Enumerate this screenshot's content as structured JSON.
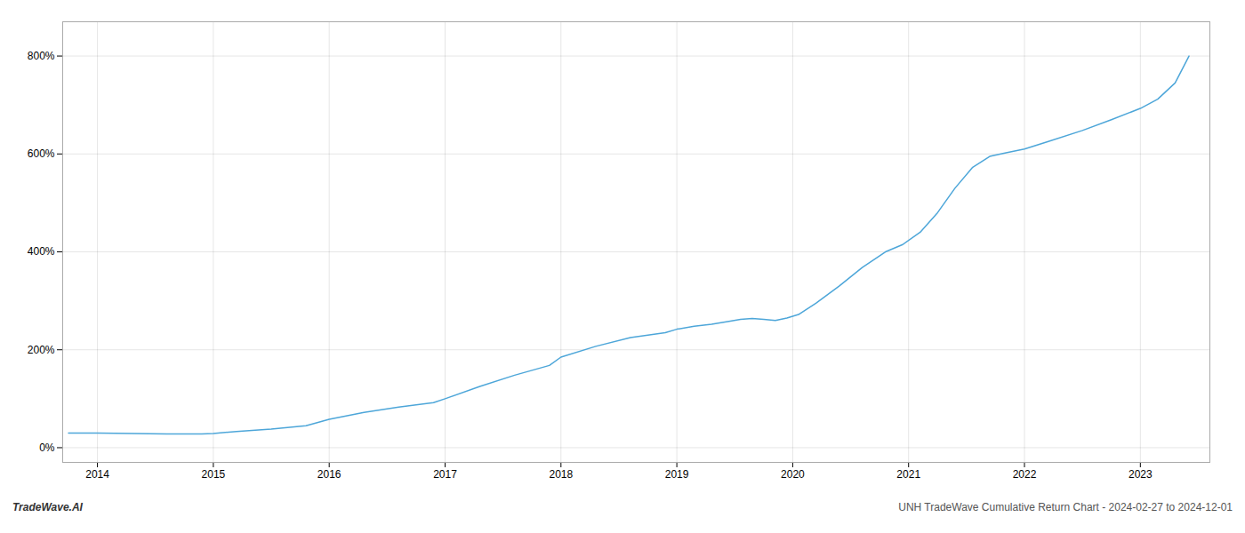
{
  "chart_data": {
    "type": "line",
    "title": "UNH TradeWave Cumulative Return Chart - 2024-02-27 to 2024-12-01",
    "annotations": [
      "TradeWave.AI"
    ],
    "color": "#4da6d9",
    "grid": true,
    "xlim": [
      2013.7,
      2023.6
    ],
    "xticks": [
      2014,
      2015,
      2016,
      2017,
      2018,
      2019,
      2020,
      2021,
      2022,
      2023
    ],
    "ylim": [
      -30,
      870
    ],
    "yticks": [
      {
        "value": 0,
        "label": "0%"
      },
      {
        "value": 200,
        "label": "200%"
      },
      {
        "value": 400,
        "label": "400%"
      },
      {
        "value": 600,
        "label": "600%"
      },
      {
        "value": 800,
        "label": "800%"
      }
    ],
    "x": [
      2013.75,
      2014.0,
      2014.3,
      2014.6,
      2014.9,
      2015.0,
      2015.2,
      2015.5,
      2015.8,
      2016.0,
      2016.3,
      2016.6,
      2016.9,
      2017.0,
      2017.3,
      2017.6,
      2017.9,
      2018.0,
      2018.3,
      2018.6,
      2018.9,
      2019.0,
      2019.15,
      2019.3,
      2019.45,
      2019.55,
      2019.65,
      2019.75,
      2019.85,
      2019.95,
      2020.05,
      2020.2,
      2020.4,
      2020.6,
      2020.8,
      2020.95,
      2021.1,
      2021.25,
      2021.4,
      2021.55,
      2021.7,
      2021.85,
      2022.0,
      2022.2,
      2022.5,
      2022.75,
      2023.0,
      2023.15,
      2023.3,
      2023.42
    ],
    "values": [
      30,
      30,
      29,
      28,
      28,
      29,
      33,
      38,
      45,
      58,
      72,
      83,
      92,
      100,
      125,
      148,
      168,
      185,
      207,
      225,
      235,
      242,
      248,
      252,
      258,
      262,
      264,
      262,
      260,
      265,
      272,
      295,
      330,
      368,
      400,
      415,
      440,
      480,
      530,
      572,
      595,
      603,
      610,
      625,
      648,
      670,
      693,
      712,
      745,
      800
    ]
  }
}
